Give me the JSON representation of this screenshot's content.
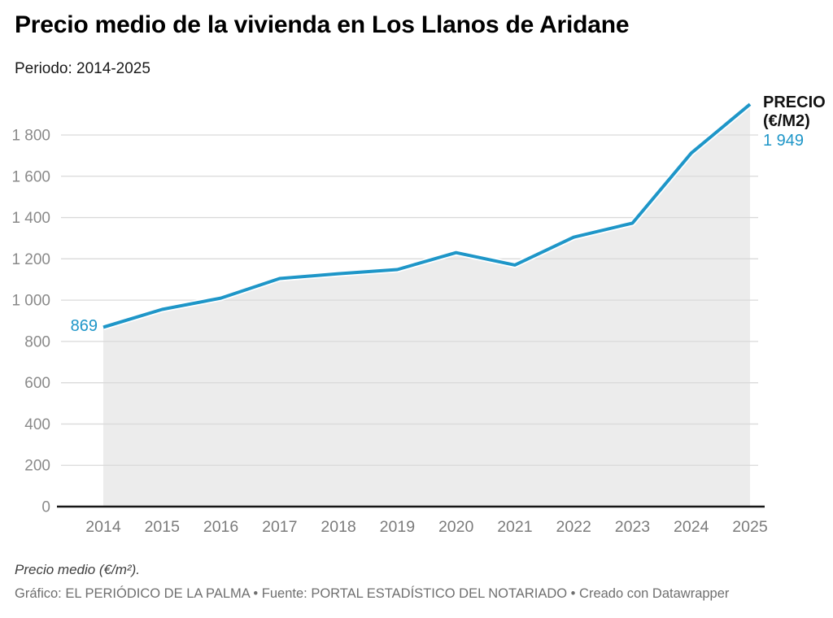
{
  "header": {
    "title": "Precio medio de la vivienda en Los Llanos de Aridane",
    "subtitle": "Periodo: 2014-2025"
  },
  "chart_data": {
    "type": "line",
    "title": "Precio medio de la vivienda en Los Llanos de Aridane",
    "subtitle": "Periodo: 2014-2025",
    "categories": [
      "2014",
      "2015",
      "2016",
      "2017",
      "2018",
      "2019",
      "2020",
      "2021",
      "2022",
      "2023",
      "2024",
      "2025"
    ],
    "series": [
      {
        "name": "PRECIO (€/M2)",
        "values": [
          869,
          955,
          1010,
          1105,
          1128,
          1148,
          1230,
          1170,
          1305,
          1373,
          1712,
          1949
        ]
      }
    ],
    "xlabel": "",
    "ylabel": "",
    "ylim": [
      0,
      1960
    ],
    "yticks": [
      0,
      200,
      400,
      600,
      800,
      1000,
      1200,
      1400,
      1600,
      1800
    ],
    "ytick_labels": [
      "0",
      "200",
      "400",
      "600",
      "800",
      "1 000",
      "1 200",
      "1 400",
      "1 600",
      "1 800"
    ],
    "grid": "horizontal",
    "legend_position": "top-right-end-of-line",
    "first_point_label": "869",
    "last_point_label": "1 949",
    "line_color": "#1e96c8",
    "area_color": "#ececec",
    "grid_color": "#dadada",
    "baseline_color": "#161616",
    "axis_text_color": "#8a8a8a"
  },
  "annotations": {
    "series_label_line1": "PRECIO",
    "series_label_line2": "(€/M2)",
    "last_value": "1 949",
    "first_value": "869"
  },
  "footer": {
    "note": "Precio medio (€/m²).",
    "credits": "Gráfico: EL PERIÓDICO DE LA PALMA • Fuente: PORTAL ESTADÍSTICO DEL NOTARIADO • Creado con Datawrapper"
  }
}
